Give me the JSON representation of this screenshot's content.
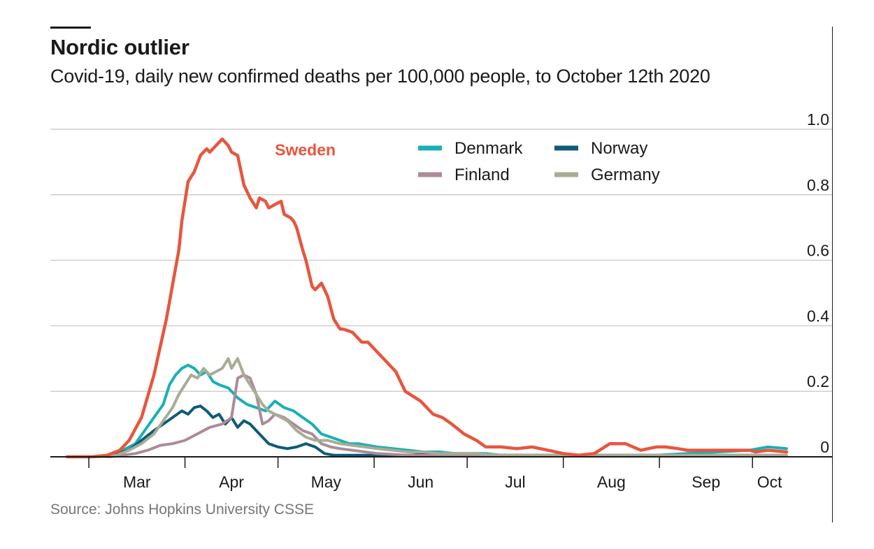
{
  "header": {
    "title": "Nordic outlier",
    "subtitle": "Covid-19, daily new confirmed deaths per 100,000 people, to October 12th 2020"
  },
  "source": "Source: Johns Hopkins University CSSE",
  "chart_data": {
    "type": "line",
    "title": "Nordic outlier",
    "subtitle": "Covid-19, daily new confirmed deaths per 100,000 people, to October 12th 2020",
    "xlabel": "",
    "ylabel": "",
    "x_unit": "days since February 23rd 2020",
    "xlim": [
      0,
      232
    ],
    "ylim": [
      0,
      1.0
    ],
    "y_ticks": [
      0,
      0.2,
      0.4,
      0.6,
      0.8,
      1.0
    ],
    "y_tick_labels": [
      "0",
      "0.2",
      "0.4",
      "0.6",
      "0.8",
      "1.0"
    ],
    "x_ticks": [
      {
        "label": "Mar",
        "start": 7,
        "end": 38
      },
      {
        "label": "Apr",
        "start": 38,
        "end": 68
      },
      {
        "label": "May",
        "start": 68,
        "end": 99
      },
      {
        "label": "Jun",
        "start": 99,
        "end": 129
      },
      {
        "label": "Jul",
        "start": 129,
        "end": 160
      },
      {
        "label": "Aug",
        "start": 160,
        "end": 191
      },
      {
        "label": "Sep",
        "start": 191,
        "end": 221
      },
      {
        "label": "Oct",
        "start": 221,
        "end": 232
      }
    ],
    "grid": true,
    "legend_position": "top-center",
    "annotations": [
      {
        "text": "Sweden",
        "series": "Sweden",
        "x": 67,
        "y": 0.92
      }
    ],
    "series": [
      {
        "name": "Sweden",
        "color": "#e8553e",
        "in_legend": false,
        "x": [
          0,
          8,
          13,
          17,
          20,
          24,
          28,
          32,
          36,
          37,
          39,
          41,
          43,
          45,
          46,
          48,
          50,
          52,
          53,
          55,
          57,
          59,
          61,
          62,
          64,
          65,
          67,
          69,
          70,
          72,
          73,
          74,
          76,
          77,
          78,
          79,
          80,
          82,
          84,
          86,
          88,
          89,
          92,
          95,
          97,
          100,
          103,
          106,
          109,
          114,
          118,
          121,
          124,
          128,
          132,
          135,
          140,
          145,
          150,
          155,
          160,
          165,
          170,
          175,
          180,
          185,
          190,
          193,
          197,
          200,
          203,
          206,
          210,
          215,
          220,
          222,
          226,
          232
        ],
        "y": [
          0,
          0,
          0.005,
          0.02,
          0.05,
          0.12,
          0.25,
          0.42,
          0.63,
          0.72,
          0.84,
          0.87,
          0.92,
          0.94,
          0.93,
          0.95,
          0.97,
          0.95,
          0.93,
          0.92,
          0.83,
          0.79,
          0.76,
          0.79,
          0.78,
          0.76,
          0.77,
          0.78,
          0.74,
          0.73,
          0.72,
          0.7,
          0.63,
          0.6,
          0.56,
          0.52,
          0.51,
          0.53,
          0.49,
          0.42,
          0.39,
          0.39,
          0.38,
          0.35,
          0.35,
          0.32,
          0.29,
          0.26,
          0.2,
          0.17,
          0.13,
          0.12,
          0.1,
          0.07,
          0.05,
          0.03,
          0.03,
          0.025,
          0.03,
          0.02,
          0.01,
          0.005,
          0.01,
          0.04,
          0.04,
          0.02,
          0.03,
          0.03,
          0.025,
          0.02,
          0.02,
          0.02,
          0.02,
          0.02,
          0.02,
          0.015,
          0.02,
          0.015
        ]
      },
      {
        "name": "Denmark",
        "color": "#18b0b8",
        "in_legend": true,
        "x": [
          0,
          10,
          14,
          18,
          22,
          25,
          28,
          31,
          33,
          35,
          37,
          39,
          41,
          43,
          45,
          47,
          49,
          52,
          55,
          58,
          61,
          64,
          67,
          70,
          73,
          76,
          79,
          82,
          85,
          88,
          91,
          94,
          97,
          100,
          105,
          110,
          115,
          120,
          125,
          130,
          135,
          140,
          145,
          150,
          160,
          170,
          180,
          190,
          200,
          210,
          220,
          226,
          232
        ],
        "y": [
          0,
          0,
          0.005,
          0.02,
          0.04,
          0.08,
          0.12,
          0.16,
          0.22,
          0.25,
          0.27,
          0.28,
          0.27,
          0.25,
          0.26,
          0.23,
          0.22,
          0.21,
          0.18,
          0.16,
          0.15,
          0.14,
          0.17,
          0.15,
          0.14,
          0.12,
          0.1,
          0.07,
          0.06,
          0.05,
          0.04,
          0.04,
          0.035,
          0.03,
          0.025,
          0.02,
          0.015,
          0.015,
          0.01,
          0.01,
          0.01,
          0.005,
          0.005,
          0.005,
          0.005,
          0.005,
          0.005,
          0.005,
          0.01,
          0.015,
          0.02,
          0.03,
          0.025
        ]
      },
      {
        "name": "Norway",
        "color": "#0f5b78",
        "in_legend": true,
        "x": [
          0,
          12,
          16,
          20,
          24,
          28,
          31,
          34,
          37,
          39,
          41,
          43,
          45,
          47,
          49,
          51,
          53,
          55,
          57,
          59,
          62,
          65,
          68,
          71,
          74,
          77,
          80,
          83,
          86,
          90,
          95,
          100,
          110,
          120,
          130,
          140,
          150,
          160,
          170,
          180,
          190,
          200,
          210,
          220,
          226,
          232
        ],
        "y": [
          0,
          0,
          0.01,
          0.02,
          0.05,
          0.08,
          0.1,
          0.12,
          0.14,
          0.13,
          0.15,
          0.155,
          0.14,
          0.12,
          0.13,
          0.1,
          0.12,
          0.09,
          0.11,
          0.1,
          0.07,
          0.04,
          0.03,
          0.025,
          0.03,
          0.04,
          0.03,
          0.01,
          0.005,
          0.005,
          0.005,
          0.005,
          0.005,
          0.01,
          0.005,
          0.005,
          0.005,
          0.005,
          0.005,
          0.005,
          0.005,
          0.005,
          0.005,
          0.005,
          0.005,
          0.005
        ]
      },
      {
        "name": "Finland",
        "color": "#ad8b98",
        "in_legend": true,
        "x": [
          0,
          14,
          18,
          22,
          26,
          30,
          34,
          38,
          42,
          46,
          50,
          53,
          55,
          57,
          59,
          61,
          63,
          65,
          67,
          70,
          73,
          76,
          79,
          82,
          85,
          88,
          92,
          96,
          100,
          110,
          120,
          130,
          140,
          150,
          160,
          170,
          180,
          190,
          200,
          210,
          220,
          232
        ],
        "y": [
          0,
          0,
          0.005,
          0.01,
          0.02,
          0.035,
          0.04,
          0.05,
          0.07,
          0.09,
          0.1,
          0.12,
          0.24,
          0.25,
          0.24,
          0.19,
          0.1,
          0.11,
          0.13,
          0.12,
          0.1,
          0.08,
          0.07,
          0.04,
          0.03,
          0.025,
          0.02,
          0.015,
          0.01,
          0.005,
          0.005,
          0.005,
          0.005,
          0.005,
          0.005,
          0.005,
          0.005,
          0.005,
          0.005,
          0.005,
          0.005,
          0.005
        ]
      },
      {
        "name": "Germany",
        "color": "#a8ac96",
        "in_legend": true,
        "x": [
          0,
          12,
          16,
          20,
          24,
          28,
          31,
          34,
          36,
          38,
          40,
          42,
          44,
          46,
          48,
          50,
          52,
          53,
          55,
          57,
          59,
          61,
          63,
          65,
          67,
          69,
          71,
          74,
          77,
          80,
          84,
          88,
          92,
          96,
          100,
          105,
          110,
          115,
          120,
          130,
          140,
          150,
          160,
          170,
          180,
          190,
          200,
          210,
          220,
          232
        ],
        "y": [
          0,
          0,
          0.005,
          0.02,
          0.04,
          0.07,
          0.11,
          0.15,
          0.19,
          0.22,
          0.25,
          0.24,
          0.27,
          0.25,
          0.26,
          0.27,
          0.3,
          0.27,
          0.3,
          0.25,
          0.22,
          0.19,
          0.16,
          0.14,
          0.13,
          0.12,
          0.11,
          0.08,
          0.06,
          0.05,
          0.05,
          0.04,
          0.035,
          0.03,
          0.025,
          0.02,
          0.015,
          0.015,
          0.01,
          0.01,
          0.005,
          0.005,
          0.005,
          0.005,
          0.005,
          0.005,
          0.005,
          0.005,
          0.005,
          0.005
        ]
      }
    ],
    "legend": [
      {
        "name": "Denmark",
        "color": "#18b0b8"
      },
      {
        "name": "Norway",
        "color": "#0f5b78"
      },
      {
        "name": "Finland",
        "color": "#ad8b98"
      },
      {
        "name": "Germany",
        "color": "#a8ac96"
      }
    ]
  }
}
